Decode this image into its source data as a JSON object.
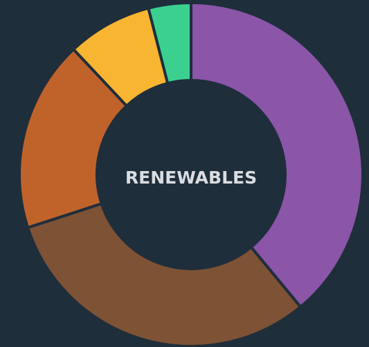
{
  "chart_data": {
    "type": "donut",
    "center_label": "RENEWABLES",
    "values": [
      39,
      31,
      18,
      8,
      4
    ],
    "colors": [
      "#8b55a8",
      "#7e5235",
      "#c0632b",
      "#f7b531",
      "#3bd08f"
    ]
  }
}
